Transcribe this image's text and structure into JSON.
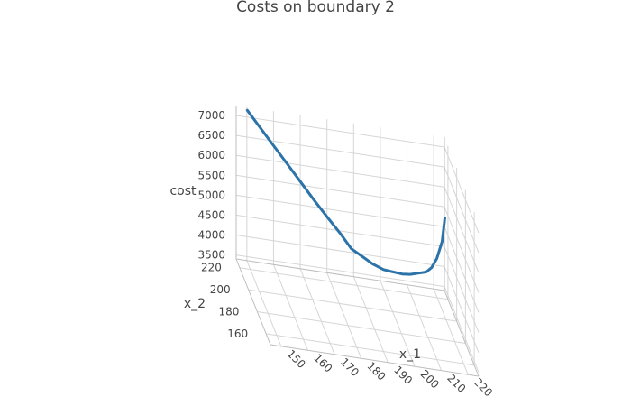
{
  "chart_data": {
    "type": "line3d",
    "title": "Costs on boundary 2",
    "axes": {
      "x": {
        "label": "x_1",
        "ticks": [
          150,
          160,
          170,
          180,
          190,
          200,
          210,
          220
        ],
        "range": [
          146,
          224
        ]
      },
      "y": {
        "label": "x_2",
        "ticks": [
          160,
          180,
          200,
          220
        ],
        "range": [
          150,
          228
        ]
      },
      "z": {
        "label": "cost",
        "ticks": [
          3500,
          4000,
          4500,
          5000,
          5500,
          6000,
          6500,
          7000
        ],
        "range": [
          3400,
          7250
        ]
      }
    },
    "grid": true,
    "series": [
      {
        "color": "#2b73a8",
        "points": [
          {
            "x": 150,
            "y": 227,
            "z": 7200
          },
          {
            "x": 155,
            "y": 227,
            "z": 6800
          },
          {
            "x": 160,
            "y": 227,
            "z": 6400
          },
          {
            "x": 165,
            "y": 227,
            "z": 6000
          },
          {
            "x": 170,
            "y": 227,
            "z": 5600
          },
          {
            "x": 175,
            "y": 227,
            "z": 5200
          },
          {
            "x": 180,
            "y": 227,
            "z": 4820
          },
          {
            "x": 185,
            "y": 227,
            "z": 4450
          },
          {
            "x": 189,
            "y": 227,
            "z": 4120
          },
          {
            "x": 193,
            "y": 227,
            "z": 3970
          },
          {
            "x": 197,
            "y": 227,
            "z": 3820
          },
          {
            "x": 201,
            "y": 227,
            "z": 3720
          },
          {
            "x": 204,
            "y": 227,
            "z": 3700
          },
          {
            "x": 208,
            "y": 227,
            "z": 3680
          },
          {
            "x": 211,
            "y": 227,
            "z": 3700
          },
          {
            "x": 214,
            "y": 227,
            "z": 3760
          },
          {
            "x": 217,
            "y": 227,
            "z": 3820
          },
          {
            "x": 219,
            "y": 227,
            "z": 3950
          },
          {
            "x": 221,
            "y": 227,
            "z": 4200
          },
          {
            "x": 223,
            "y": 227,
            "z": 4650
          },
          {
            "x": 224,
            "y": 227,
            "z": 5250
          }
        ]
      }
    ]
  }
}
